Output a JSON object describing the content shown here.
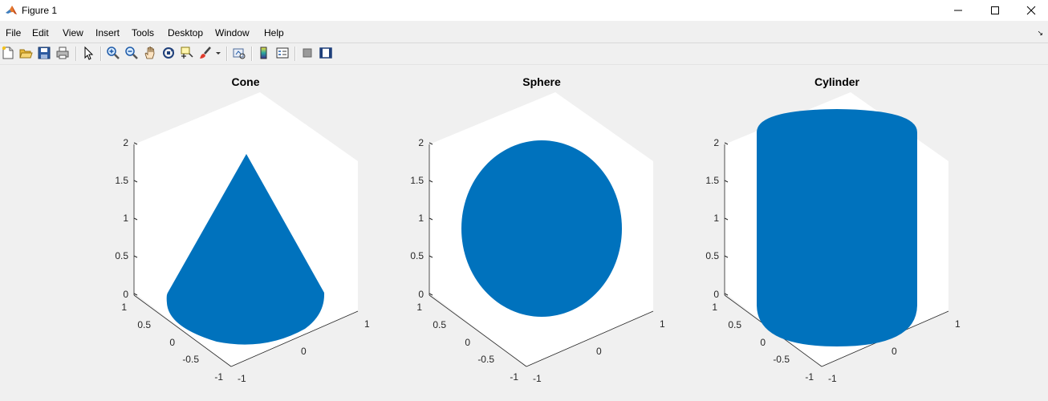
{
  "window": {
    "title": "Figure 1"
  },
  "menu": [
    "File",
    "Edit",
    "View",
    "Insert",
    "Tools",
    "Desktop",
    "Window",
    "Help"
  ],
  "toolbar_icons": [
    "new-figure-icon",
    "open-file-icon",
    "save-icon",
    "print-icon",
    "edit-plot-arrow-icon",
    "zoom-in-icon",
    "zoom-out-icon",
    "pan-hand-icon",
    "rotate-3d-icon",
    "data-cursor-icon",
    "brush-icon",
    "link-plot-icon",
    "insert-colorbar-icon",
    "insert-legend-icon",
    "hide-plot-tools-icon",
    "show-plot-tools-icon"
  ],
  "colors": {
    "scatter": "#0072bd",
    "axes_background": "#ffffff",
    "figure_background": "#f0f0f0"
  },
  "axes": [
    {
      "title": "Cone",
      "z_ticks": [
        "0",
        "0.5",
        "1",
        "1.5",
        "2"
      ],
      "y_ticks": [
        "1",
        "0.5",
        "0",
        "-0.5",
        "-1"
      ],
      "x_ticks": [
        "-1",
        "0",
        "1"
      ]
    },
    {
      "title": "Sphere",
      "z_ticks": [
        "0",
        "0.5",
        "1",
        "1.5",
        "2"
      ],
      "y_ticks": [
        "1",
        "0.5",
        "0",
        "-0.5",
        "-1"
      ],
      "x_ticks": [
        "-1",
        "0",
        "1"
      ]
    },
    {
      "title": "Cylinder",
      "z_ticks": [
        "0",
        "0.5",
        "1",
        "1.5",
        "2"
      ],
      "y_ticks": [
        "1",
        "0.5",
        "0",
        "-0.5",
        "-1"
      ],
      "x_ticks": [
        "-1",
        "0",
        "1"
      ]
    }
  ]
}
